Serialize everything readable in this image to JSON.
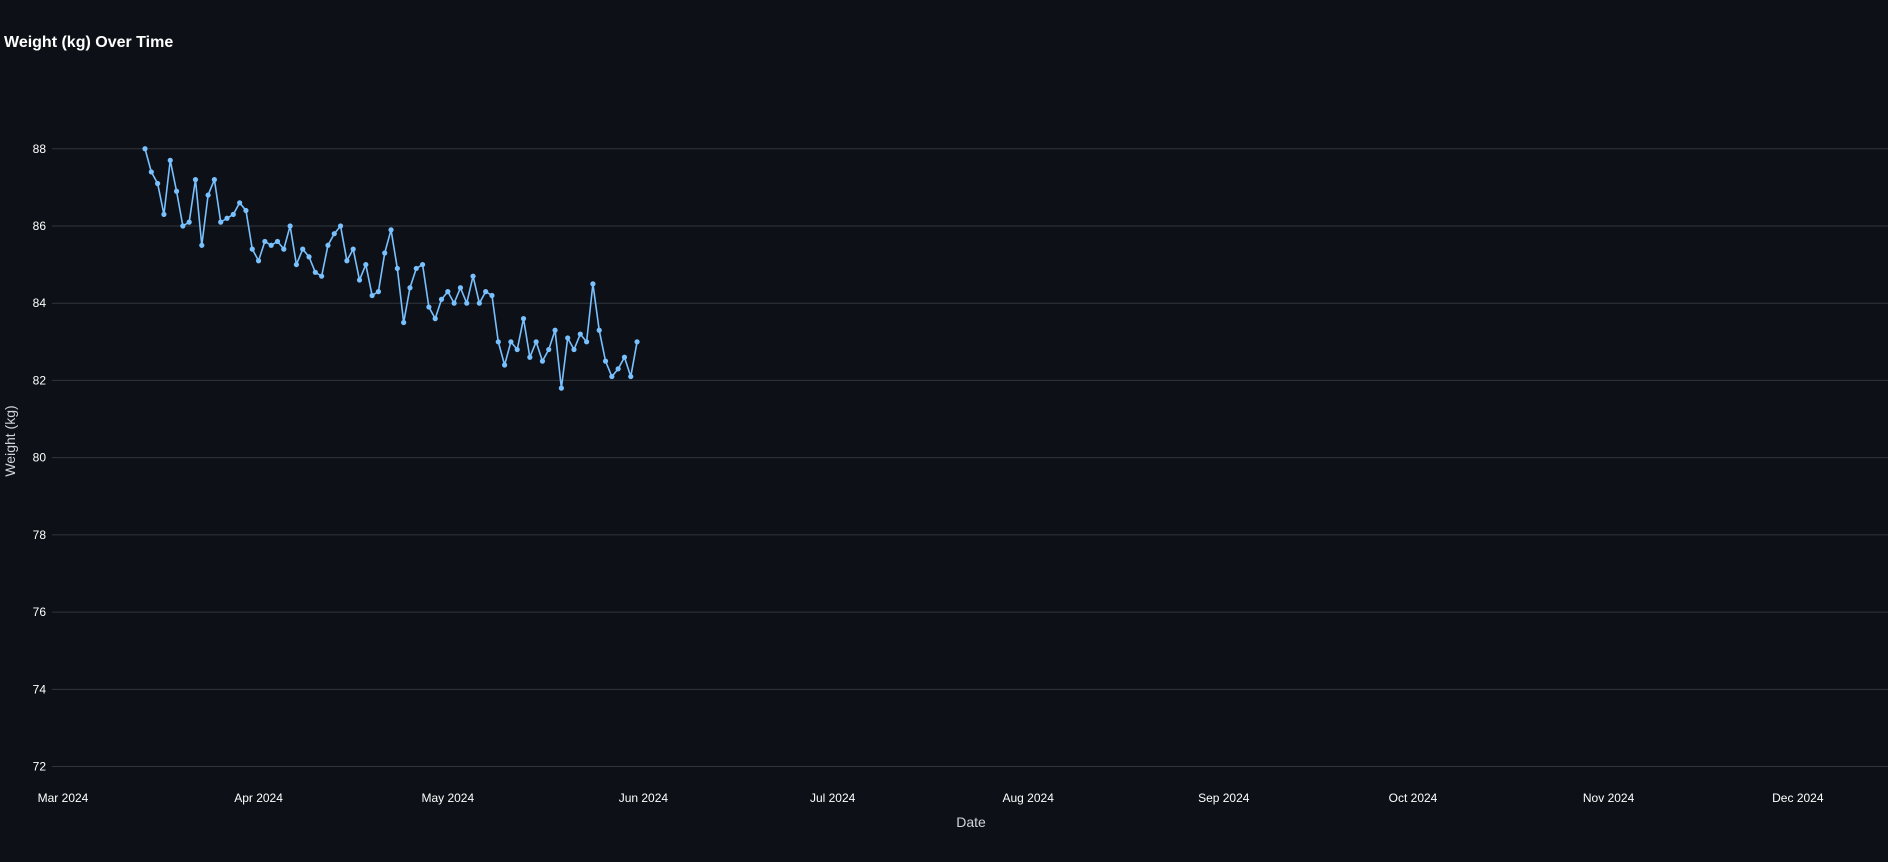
{
  "chart_data": {
    "type": "line",
    "title": "Weight (kg) Over Time",
    "xlabel": "Date",
    "ylabel": "Weight (kg)",
    "ylim": [
      71.6,
      88.9
    ],
    "y_ticks": [
      72,
      74,
      76,
      78,
      80,
      82,
      84,
      86,
      88
    ],
    "xlim": [
      "2024-03-01",
      "2024-12-08"
    ],
    "x_ticks": [
      {
        "date": "2024-03-01",
        "label": "Mar 2024"
      },
      {
        "date": "2024-04-01",
        "label": "Apr 2024"
      },
      {
        "date": "2024-05-01",
        "label": "May 2024"
      },
      {
        "date": "2024-06-01",
        "label": "Jun 2024"
      },
      {
        "date": "2024-07-01",
        "label": "Jul 2024"
      },
      {
        "date": "2024-08-01",
        "label": "Aug 2024"
      },
      {
        "date": "2024-09-01",
        "label": "Sep 2024"
      },
      {
        "date": "2024-10-01",
        "label": "Oct 2024"
      },
      {
        "date": "2024-11-01",
        "label": "Nov 2024"
      },
      {
        "date": "2024-12-01",
        "label": "Dec 2024"
      }
    ],
    "grid": true,
    "line_color": "#79c0ff",
    "series": [
      {
        "points": [
          [
            "2024-03-14",
            88.0
          ],
          [
            "2024-03-15",
            87.4
          ],
          [
            "2024-03-16",
            87.1
          ],
          [
            "2024-03-17",
            86.3
          ],
          [
            "2024-03-18",
            87.7
          ],
          [
            "2024-03-19",
            86.9
          ],
          [
            "2024-03-20",
            86.0
          ],
          [
            "2024-03-21",
            86.1
          ],
          [
            "2024-03-22",
            87.2
          ],
          [
            "2024-03-23",
            85.5
          ],
          [
            "2024-03-24",
            86.8
          ],
          [
            "2024-03-25",
            87.2
          ],
          [
            "2024-03-26",
            86.1
          ],
          [
            "2024-03-27",
            86.2
          ],
          [
            "2024-03-28",
            86.3
          ],
          [
            "2024-03-29",
            86.6
          ],
          [
            "2024-03-30",
            86.4
          ],
          [
            "2024-03-31",
            85.4
          ],
          [
            "2024-04-01",
            85.1
          ],
          [
            "2024-04-02",
            85.6
          ],
          [
            "2024-04-03",
            85.5
          ],
          [
            "2024-04-04",
            85.6
          ],
          [
            "2024-04-05",
            85.4
          ],
          [
            "2024-04-06",
            86.0
          ],
          [
            "2024-04-07",
            85.0
          ],
          [
            "2024-04-08",
            85.4
          ],
          [
            "2024-04-09",
            85.2
          ],
          [
            "2024-04-10",
            84.8
          ],
          [
            "2024-04-11",
            84.7
          ],
          [
            "2024-04-12",
            85.5
          ],
          [
            "2024-04-13",
            85.8
          ],
          [
            "2024-04-14",
            86.0
          ],
          [
            "2024-04-15",
            85.1
          ],
          [
            "2024-04-16",
            85.4
          ],
          [
            "2024-04-17",
            84.6
          ],
          [
            "2024-04-18",
            85.0
          ],
          [
            "2024-04-19",
            84.2
          ],
          [
            "2024-04-20",
            84.3
          ],
          [
            "2024-04-21",
            85.3
          ],
          [
            "2024-04-22",
            85.9
          ],
          [
            "2024-04-23",
            84.9
          ],
          [
            "2024-04-24",
            83.5
          ],
          [
            "2024-04-25",
            84.4
          ],
          [
            "2024-04-26",
            84.9
          ],
          [
            "2024-04-27",
            85.0
          ],
          [
            "2024-04-28",
            83.9
          ],
          [
            "2024-04-29",
            83.6
          ],
          [
            "2024-04-30",
            84.1
          ],
          [
            "2024-05-01",
            84.3
          ],
          [
            "2024-05-02",
            84.0
          ],
          [
            "2024-05-03",
            84.4
          ],
          [
            "2024-05-04",
            84.0
          ],
          [
            "2024-05-05",
            84.7
          ],
          [
            "2024-05-06",
            84.0
          ],
          [
            "2024-05-07",
            84.3
          ],
          [
            "2024-05-08",
            84.2
          ],
          [
            "2024-05-09",
            83.0
          ],
          [
            "2024-05-10",
            82.4
          ],
          [
            "2024-05-11",
            83.0
          ],
          [
            "2024-05-12",
            82.8
          ],
          [
            "2024-05-13",
            83.6
          ],
          [
            "2024-05-14",
            82.6
          ],
          [
            "2024-05-15",
            83.0
          ],
          [
            "2024-05-16",
            82.5
          ],
          [
            "2024-05-17",
            82.8
          ],
          [
            "2024-05-18",
            83.3
          ],
          [
            "2024-05-19",
            81.8
          ],
          [
            "2024-05-20",
            83.1
          ],
          [
            "2024-05-21",
            82.8
          ],
          [
            "2024-05-22",
            83.2
          ],
          [
            "2024-05-23",
            83.0
          ],
          [
            "2024-05-24",
            84.5
          ],
          [
            "2024-05-25",
            83.3
          ],
          [
            "2024-05-26",
            82.5
          ],
          [
            "2024-05-27",
            82.1
          ],
          [
            "2024-05-28",
            82.3
          ],
          [
            "2024-05-29",
            82.6
          ],
          [
            "2024-05-30",
            82.1
          ],
          [
            "2024-05-31",
            83.0
          ]
        ]
      }
    ]
  }
}
